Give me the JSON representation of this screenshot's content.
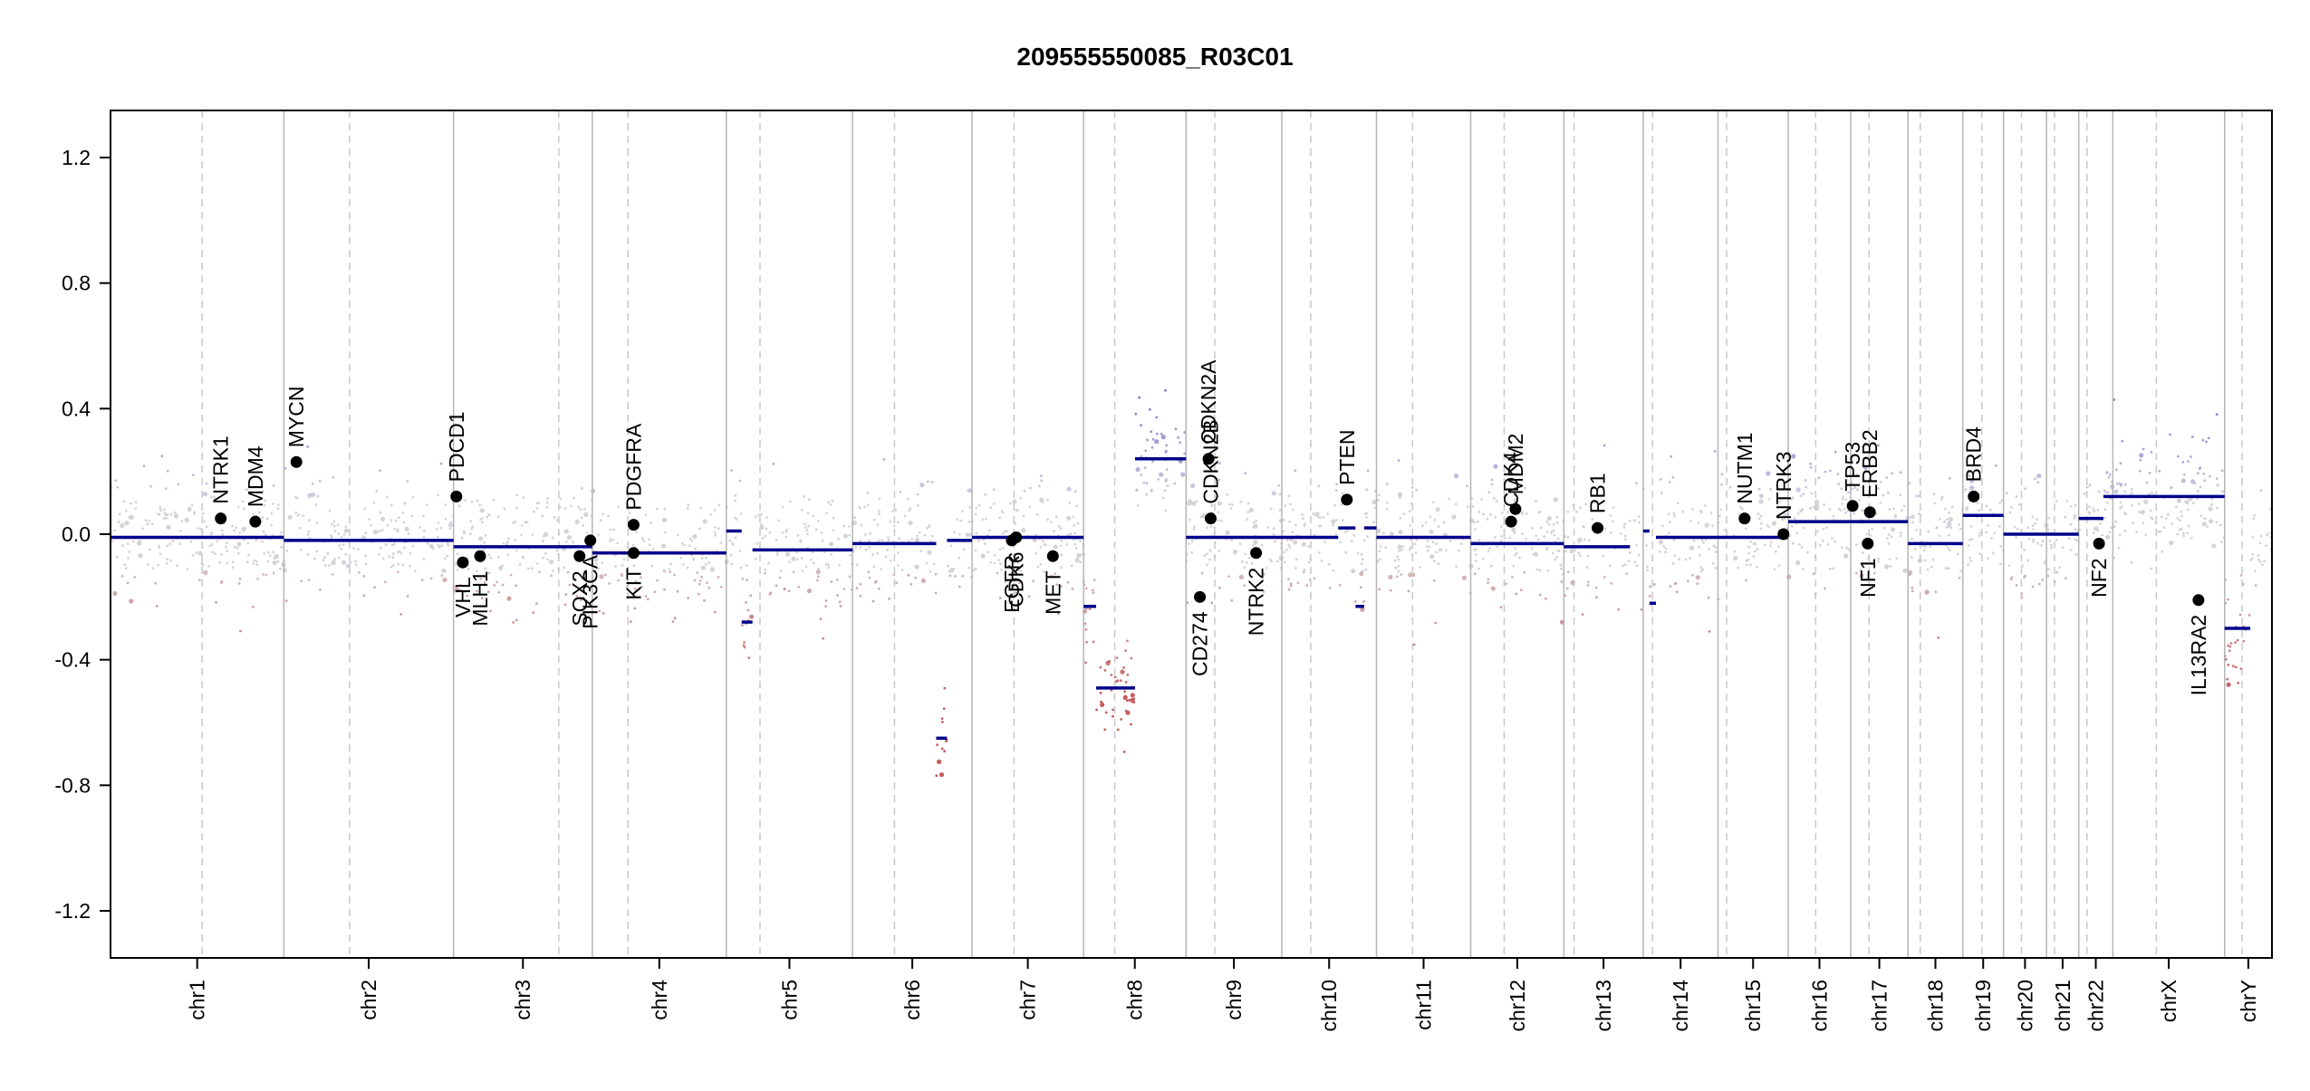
{
  "chart_data": {
    "type": "scatter",
    "title": "209555550085_R03C01",
    "xlabel": "",
    "ylabel": "",
    "ylim": [
      -1.35,
      1.35
    ],
    "yticks": [
      -1.2,
      -0.8,
      -0.4,
      0.0,
      0.4,
      0.8,
      1.2
    ],
    "ytick_labels": [
      "-1.2",
      "-0.8",
      "-0.4",
      "0.0",
      "0.4",
      "0.8",
      "1.2"
    ],
    "grid": false,
    "legend": "none",
    "colors": {
      "axis": "#000000",
      "chrom_boundary": "#b5b5b5",
      "centromere": "#c8c8c8",
      "segment": "#00008b",
      "gain_points": "#5b5bb0",
      "neutral_points": "#c0c0c8",
      "loss_points": "#b22222",
      "gene_marker": "#000000"
    },
    "chromosomes": [
      {
        "name": "chr1",
        "start": 0.0,
        "end": 0.0802,
        "centromere": 0.0424
      },
      {
        "name": "chr2",
        "start": 0.0802,
        "end": 0.1587,
        "centromere": 0.1106
      },
      {
        "name": "chr3",
        "start": 0.1587,
        "end": 0.2229,
        "centromere": 0.2074
      },
      {
        "name": "chr4",
        "start": 0.2229,
        "end": 0.2849,
        "centromere": 0.2394
      },
      {
        "name": "chr5",
        "start": 0.2849,
        "end": 0.3433,
        "centromere": 0.3005
      },
      {
        "name": "chr6",
        "start": 0.3433,
        "end": 0.3986,
        "centromere": 0.3627
      },
      {
        "name": "chr7",
        "start": 0.3986,
        "end": 0.4502,
        "centromere": 0.418
      },
      {
        "name": "chr8",
        "start": 0.4502,
        "end": 0.4976,
        "centromere": 0.4646
      },
      {
        "name": "chr9",
        "start": 0.4976,
        "end": 0.5419,
        "centromere": 0.5109
      },
      {
        "name": "chr10",
        "start": 0.5419,
        "end": 0.5857,
        "centromere": 0.5553
      },
      {
        "name": "chr11",
        "start": 0.5857,
        "end": 0.6293,
        "centromere": 0.6024
      },
      {
        "name": "chr12",
        "start": 0.6293,
        "end": 0.6724,
        "centromere": 0.6448
      },
      {
        "name": "chr13",
        "start": 0.6724,
        "end": 0.7091,
        "centromere": 0.6771
      },
      {
        "name": "chr14",
        "start": 0.7091,
        "end": 0.7437,
        "centromere": 0.7134
      },
      {
        "name": "chr15",
        "start": 0.7437,
        "end": 0.7762,
        "centromere": 0.7477
      },
      {
        "name": "chr16",
        "start": 0.7762,
        "end": 0.8051,
        "centromere": 0.7889
      },
      {
        "name": "chr17",
        "start": 0.8051,
        "end": 0.8316,
        "centromere": 0.8136
      },
      {
        "name": "chr18",
        "start": 0.8316,
        "end": 0.857,
        "centromere": 0.8373
      },
      {
        "name": "chr19",
        "start": 0.857,
        "end": 0.8758,
        "centromere": 0.8658
      },
      {
        "name": "chr20",
        "start": 0.8758,
        "end": 0.8957,
        "centromere": 0.8841
      },
      {
        "name": "chr21",
        "start": 0.8957,
        "end": 0.9106,
        "centromere": 0.8994
      },
      {
        "name": "chr22",
        "start": 0.9106,
        "end": 0.9264,
        "centromere": 0.9144
      },
      {
        "name": "chrX",
        "start": 0.9264,
        "end": 0.9781,
        "centromere": 0.9465
      },
      {
        "name": "chrY",
        "start": 0.9781,
        "end": 1.0,
        "centromere": 0.9862
      }
    ],
    "segments": [
      {
        "x0": 0.0,
        "x1": 0.0802,
        "y": -0.01
      },
      {
        "x0": 0.0802,
        "x1": 0.1587,
        "y": -0.02
      },
      {
        "x0": 0.1587,
        "x1": 0.2229,
        "y": -0.04
      },
      {
        "x0": 0.2229,
        "x1": 0.2849,
        "y": -0.06
      },
      {
        "x0": 0.2849,
        "x1": 0.292,
        "y": 0.01
      },
      {
        "x0": 0.292,
        "x1": 0.297,
        "y": -0.28
      },
      {
        "x0": 0.297,
        "x1": 0.3433,
        "y": -0.05
      },
      {
        "x0": 0.3433,
        "x1": 0.382,
        "y": -0.03
      },
      {
        "x0": 0.382,
        "x1": 0.387,
        "y": -0.65
      },
      {
        "x0": 0.387,
        "x1": 0.3986,
        "y": -0.02
      },
      {
        "x0": 0.3986,
        "x1": 0.4502,
        "y": -0.01
      },
      {
        "x0": 0.4502,
        "x1": 0.456,
        "y": -0.23
      },
      {
        "x0": 0.456,
        "x1": 0.474,
        "y": -0.49
      },
      {
        "x0": 0.474,
        "x1": 0.4976,
        "y": 0.24
      },
      {
        "x0": 0.4976,
        "x1": 0.5419,
        "y": -0.01
      },
      {
        "x0": 0.5419,
        "x1": 0.568,
        "y": -0.01
      },
      {
        "x0": 0.568,
        "x1": 0.576,
        "y": 0.02
      },
      {
        "x0": 0.576,
        "x1": 0.58,
        "y": -0.23
      },
      {
        "x0": 0.58,
        "x1": 0.5857,
        "y": 0.02
      },
      {
        "x0": 0.5857,
        "x1": 0.6293,
        "y": -0.01
      },
      {
        "x0": 0.6293,
        "x1": 0.6724,
        "y": -0.03
      },
      {
        "x0": 0.6724,
        "x1": 0.703,
        "y": -0.04
      },
      {
        "x0": 0.7091,
        "x1": 0.712,
        "y": 0.01
      },
      {
        "x0": 0.712,
        "x1": 0.715,
        "y": -0.22
      },
      {
        "x0": 0.715,
        "x1": 0.7437,
        "y": -0.01
      },
      {
        "x0": 0.7437,
        "x1": 0.7762,
        "y": -0.01
      },
      {
        "x0": 0.7762,
        "x1": 0.8051,
        "y": 0.04
      },
      {
        "x0": 0.8051,
        "x1": 0.8316,
        "y": 0.04
      },
      {
        "x0": 0.8316,
        "x1": 0.857,
        "y": -0.03
      },
      {
        "x0": 0.857,
        "x1": 0.8758,
        "y": 0.06
      },
      {
        "x0": 0.8758,
        "x1": 0.8957,
        "y": 0.0
      },
      {
        "x0": 0.8957,
        "x1": 0.9106,
        "y": 0.0
      },
      {
        "x0": 0.9106,
        "x1": 0.922,
        "y": 0.05
      },
      {
        "x0": 0.922,
        "x1": 0.9781,
        "y": 0.12
      },
      {
        "x0": 0.9781,
        "x1": 0.99,
        "y": -0.3
      }
    ],
    "genes": [
      {
        "name": "NTRK1",
        "x": 0.051,
        "y": 0.05,
        "label_side": "above"
      },
      {
        "name": "MDM4",
        "x": 0.067,
        "y": 0.04,
        "label_side": "above"
      },
      {
        "name": "MYCN",
        "x": 0.086,
        "y": 0.23,
        "label_side": "above"
      },
      {
        "name": "PDCD1",
        "x": 0.16,
        "y": 0.12,
        "label_side": "above"
      },
      {
        "name": "VHL",
        "x": 0.163,
        "y": -0.09,
        "label_side": "below"
      },
      {
        "name": "MLH1",
        "x": 0.171,
        "y": -0.07,
        "label_side": "below"
      },
      {
        "name": "SOX2",
        "x": 0.217,
        "y": -0.07,
        "label_side": "below"
      },
      {
        "name": "PIK3CA",
        "x": 0.222,
        "y": -0.02,
        "label_side": "below"
      },
      {
        "name": "PDGFRA",
        "x": 0.242,
        "y": 0.03,
        "label_side": "above"
      },
      {
        "name": "KIT",
        "x": 0.242,
        "y": -0.06,
        "label_side": "below"
      },
      {
        "name": "EGFR",
        "x": 0.417,
        "y": -0.02,
        "label_side": "below"
      },
      {
        "name": "CDK6",
        "x": 0.419,
        "y": -0.01,
        "label_side": "below"
      },
      {
        "name": "MET",
        "x": 0.436,
        "y": -0.07,
        "label_side": "below"
      },
      {
        "name": "CD274",
        "x": 0.504,
        "y": -0.2,
        "label_side": "below"
      },
      {
        "name": "CDKN2A",
        "x": 0.508,
        "y": 0.24,
        "label_side": "above"
      },
      {
        "name": "CDKN2B",
        "x": 0.509,
        "y": 0.05,
        "label_side": "above"
      },
      {
        "name": "NTRK2",
        "x": 0.53,
        "y": -0.06,
        "label_side": "below"
      },
      {
        "name": "PTEN",
        "x": 0.572,
        "y": 0.11,
        "label_side": "above"
      },
      {
        "name": "CDK4",
        "x": 0.648,
        "y": 0.04,
        "label_side": "above"
      },
      {
        "name": "MDM2",
        "x": 0.65,
        "y": 0.08,
        "label_side": "above"
      },
      {
        "name": "RB1",
        "x": 0.688,
        "y": 0.02,
        "label_side": "above"
      },
      {
        "name": "NUTM1",
        "x": 0.756,
        "y": 0.05,
        "label_side": "above"
      },
      {
        "name": "NTRK3",
        "x": 0.774,
        "y": 0.0,
        "label_side": "above"
      },
      {
        "name": "TP53",
        "x": 0.806,
        "y": 0.09,
        "label_side": "above"
      },
      {
        "name": "ERBB2",
        "x": 0.814,
        "y": 0.07,
        "label_side": "above"
      },
      {
        "name": "NF1",
        "x": 0.813,
        "y": -0.03,
        "label_side": "below"
      },
      {
        "name": "BRD4",
        "x": 0.862,
        "y": 0.12,
        "label_side": "above"
      },
      {
        "name": "NF2",
        "x": 0.92,
        "y": -0.03,
        "label_side": "below"
      },
      {
        "name": "IL13RA2",
        "x": 0.966,
        "y": -0.21,
        "label_side": "below"
      }
    ]
  }
}
